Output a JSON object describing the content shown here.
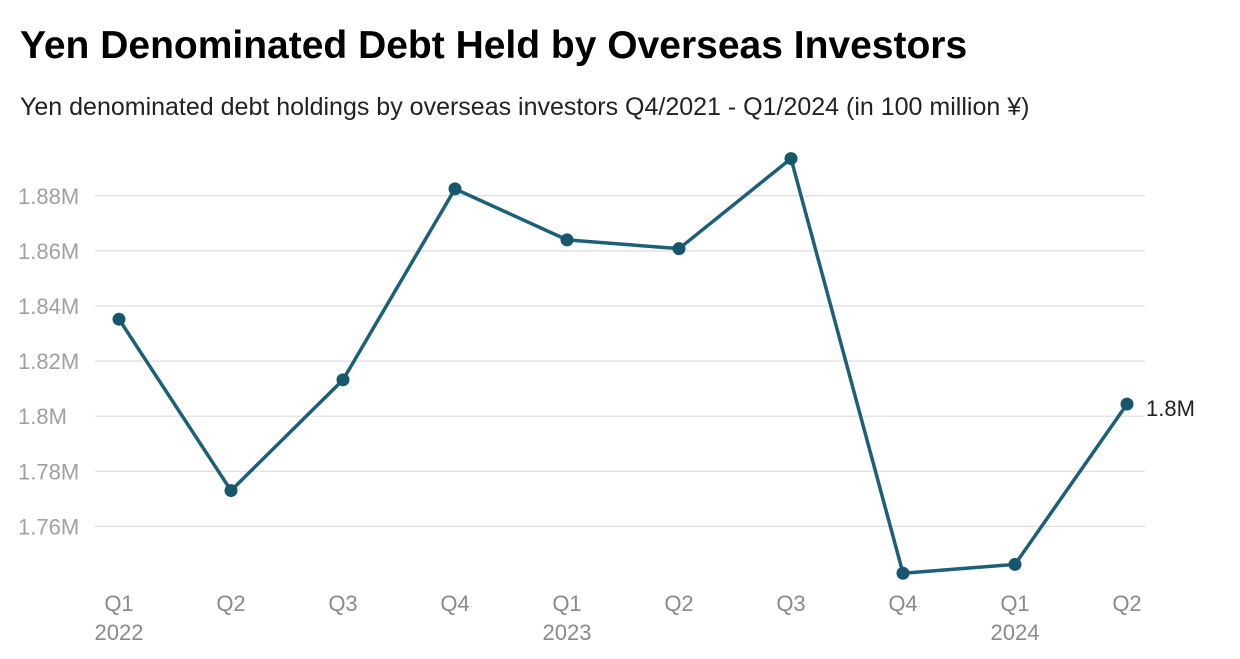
{
  "chart_data": {
    "type": "line",
    "title": "Yen Denominated Debt Held by Overseas Investors",
    "subtitle": "Yen denominated debt holdings by overseas investors Q4/2021 - Q1/2024 (in 100 million ¥)",
    "xlabel": "",
    "ylabel": "",
    "categories": [
      "Q1",
      "Q2",
      "Q3",
      "Q4",
      "Q1",
      "Q2",
      "Q3",
      "Q4",
      "Q1",
      "Q2"
    ],
    "year_labels": [
      "2022",
      "",
      "",
      "",
      "2023",
      "",
      "",
      "",
      "2024",
      ""
    ],
    "series": [
      {
        "values": [
          1835200,
          1773000,
          1813200,
          1882500,
          1864000,
          1860800,
          1893500,
          1743000,
          1746200,
          1804400
        ]
      }
    ],
    "yticks": [
      1760000,
      1780000,
      1800000,
      1820000,
      1840000,
      1860000,
      1880000
    ],
    "ytick_labels": [
      "1.76M",
      "1.78M",
      "1.8M",
      "1.82M",
      "1.84M",
      "1.86M",
      "1.88M"
    ],
    "ylim": [
      1742000,
      1894800
    ],
    "grid": true,
    "end_label": "1.8M",
    "colors": {
      "line": "#1b6078",
      "point": "#17566d"
    }
  }
}
